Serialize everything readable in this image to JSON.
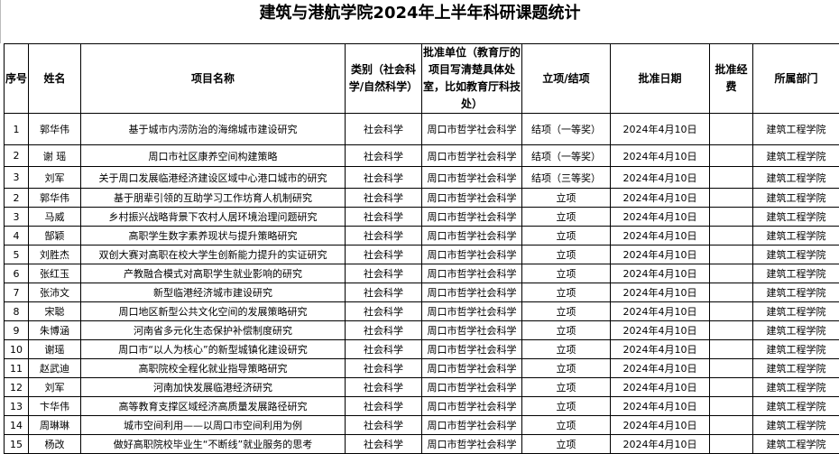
{
  "title": "建筑与港航学院2024年上半年科研课题统计",
  "headers": [
    "序号",
    "姓名",
    "项目名称",
    "类别（社会科学/自然科学）",
    "批准单位（教育厅的项目写清楚具体处室，比如教育厅科技处）",
    "立项/结项",
    "批准日期",
    "批准经费",
    "所属部门"
  ],
  "rows": [
    [
      "1",
      "郭华伟",
      "基于城市内涝防治的海绵城市建设研究",
      "社会科学",
      "周口市哲学社会科学",
      "结项（一等奖）",
      "2024年4月10日",
      "",
      "建筑工程学院"
    ],
    [
      "2",
      "谢  瑶",
      "周口市社区康养空间构建策略",
      "社会科学",
      "周口市哲学社会科学",
      "结项（一等奖）",
      "2024年4月10日",
      "",
      "建筑工程学院"
    ],
    [
      "3",
      "刘军",
      "关于周口发展临港经济建设区域中心港口城市的研究",
      "社会科学",
      "周口市哲学社会科学",
      "结项（三等奖）",
      "2024年4月10日",
      "",
      "建筑工程学院"
    ],
    [
      "2",
      "郭华伟",
      "基于朋辈引领的互助学习工作坊育人机制研究",
      "社会科学",
      "周口市哲学社会科学",
      "立项",
      "2024年4月10日",
      "",
      "建筑工程学院"
    ],
    [
      "3",
      "马威",
      "乡村振兴战略背景下农村人居环境治理问题研究",
      "社会科学",
      "周口市哲学社会科学",
      "立项",
      "2024年4月10日",
      "",
      "建筑工程学院"
    ],
    [
      "4",
      "郜颖",
      "高职学生数字素养现状与提升策略研究",
      "社会科学",
      "周口市哲学社会科学",
      "立项",
      "2024年4月10日",
      "",
      "建筑工程学院"
    ],
    [
      "5",
      "刘胜杰",
      "双创大赛对高职在校大学生创新能力提升的实证研究",
      "社会科学",
      "周口市哲学社会科学",
      "立项",
      "2024年4月10日",
      "",
      "建筑工程学院"
    ],
    [
      "6",
      "张红玉",
      "产教融合模式对高职学生就业影响的研究",
      "社会科学",
      "周口市哲学社会科学",
      "立项",
      "2024年4月10日",
      "",
      "建筑工程学院"
    ],
    [
      "7",
      "张沛文",
      "新型临港经济城市建设研究",
      "社会科学",
      "周口市哲学社会科学",
      "立项",
      "2024年4月10日",
      "",
      "建筑工程学院"
    ],
    [
      "8",
      "宋聪",
      "周口地区新型公共文化空间的发展策略研究",
      "社会科学",
      "周口市哲学社会科学",
      "立项",
      "2024年4月10日",
      "",
      "建筑工程学院"
    ],
    [
      "9",
      "朱博涵",
      "河南省多元化生态保护补偿制度研究",
      "社会科学",
      "周口市哲学社会科学",
      "立项",
      "2024年4月10日",
      "",
      "建筑工程学院"
    ],
    [
      "10",
      "谢瑶",
      "周口市“以人为核心”的新型城镇化建设研究",
      "社会科学",
      "周口市哲学社会科学",
      "立项",
      "2024年4月10日",
      "",
      "建筑工程学院"
    ],
    [
      "11",
      "赵武迪",
      "高职院校全程化就业指导策略研究",
      "社会科学",
      "周口市哲学社会科学",
      "立项",
      "2024年4月10日",
      "",
      "建筑工程学院"
    ],
    [
      "12",
      "刘军",
      "河南加快发展临港经济研究",
      "社会科学",
      "周口市哲学社会科学",
      "立项",
      "2024年4月10日",
      "",
      "建筑工程学院"
    ],
    [
      "13",
      "卞华伟",
      "高等教育支撑区域经济高质量发展路径研究",
      "社会科学",
      "周口市哲学社会科学",
      "立项",
      "2024年4月10日",
      "",
      "建筑工程学院"
    ],
    [
      "14",
      "周琳琳",
      "城市空间利用——以周口市空间利用为例",
      "社会科学",
      "周口市哲学社会科学",
      "立项",
      "2024年4月10日",
      "",
      "建筑工程学院"
    ],
    [
      "15",
      "杨改",
      "做好高职院校毕业生“不断线”就业服务的思考",
      "社会科学",
      "周口市哲学社会科学",
      "立项",
      "2024年4月10日",
      "",
      "建筑工程学院"
    ]
  ]
}
